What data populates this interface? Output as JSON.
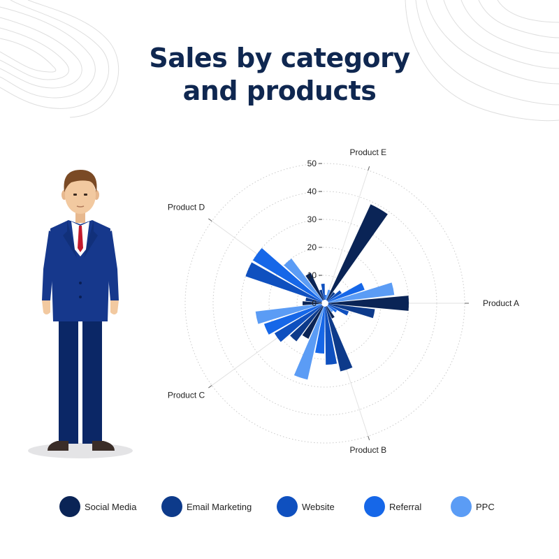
{
  "title_lines": [
    "Sales by category",
    "and products"
  ],
  "chart_data": {
    "type": "polar-bar",
    "title": "Sales by category and products",
    "angular_categories": [
      "Product A",
      "Product B",
      "Product C",
      "Product D",
      "Product E"
    ],
    "series_names": [
      "Social Media",
      "Email Marketing",
      "Website",
      "Referral",
      "PPC"
    ],
    "series_colors": [
      "#0a2456",
      "#0d3a8a",
      "#0f50bf",
      "#1667e8",
      "#5b9cf5"
    ],
    "radial_ticks": [
      10,
      20,
      30,
      40,
      50
    ],
    "radial_range": [
      0,
      50
    ],
    "bars": [
      {
        "series": "Social Media",
        "angle": 0,
        "value": 30
      },
      {
        "series": "Email Marketing",
        "angle": 12,
        "value": 18
      },
      {
        "series": "Website",
        "angle": 24,
        "value": 9
      },
      {
        "series": "Referral",
        "angle": 36,
        "value": 5
      },
      {
        "series": "PPC",
        "angle": 48,
        "value": 4
      },
      {
        "series": "Social Media",
        "angle": 60,
        "value": 6
      },
      {
        "series": "Email Marketing",
        "angle": 72,
        "value": 25
      },
      {
        "series": "Website",
        "angle": 84,
        "value": 22
      },
      {
        "series": "Referral",
        "angle": 96,
        "value": 18
      },
      {
        "series": "PPC",
        "angle": 108,
        "value": 28
      },
      {
        "series": "Social Media",
        "angle": 120,
        "value": 14
      },
      {
        "series": "Email Marketing",
        "angle": 132,
        "value": 17
      },
      {
        "series": "Website",
        "angle": 144,
        "value": 21
      },
      {
        "series": "Referral",
        "angle": 156,
        "value": 23
      },
      {
        "series": "PPC",
        "angle": 168,
        "value": 25
      },
      {
        "series": "Social Media",
        "angle": 180,
        "value": 8
      },
      {
        "series": "Email Marketing",
        "angle": 192,
        "value": 7
      },
      {
        "series": "Website",
        "angle": 204,
        "value": 30
      },
      {
        "series": "Referral",
        "angle": 216,
        "value": 30
      },
      {
        "series": "PPC",
        "angle": 228,
        "value": 20
      },
      {
        "series": "Social Media",
        "angle": 240,
        "value": 12
      },
      {
        "series": "Email Marketing",
        "angle": 252,
        "value": 5
      },
      {
        "series": "Website",
        "angle": 264,
        "value": 7
      },
      {
        "series": "Referral",
        "angle": 276,
        "value": 3
      },
      {
        "series": "PPC",
        "angle": 288,
        "value": 5
      },
      {
        "series": "Social Media",
        "angle": 300,
        "value": 39
      },
      {
        "series": "Email Marketing",
        "angle": 312,
        "value": 5
      },
      {
        "series": "Website",
        "angle": 324,
        "value": 7
      },
      {
        "series": "Referral",
        "angle": 336,
        "value": 15
      },
      {
        "series": "PPC",
        "angle": 348,
        "value": 25
      }
    ],
    "legend_position": "bottom",
    "grid": true
  }
}
